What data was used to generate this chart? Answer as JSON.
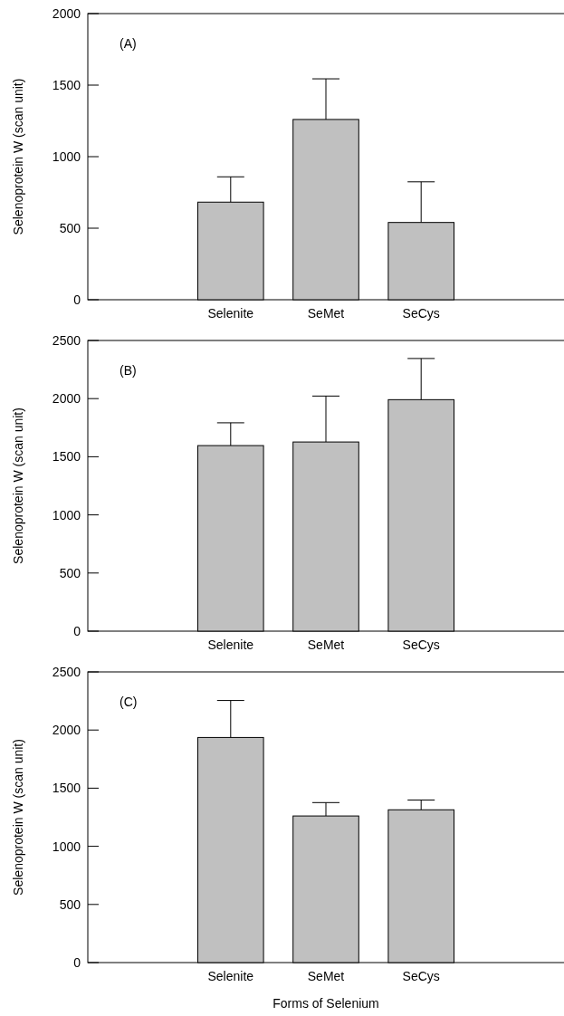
{
  "chart_data": [
    {
      "type": "bar",
      "categories": [
        null,
        "Selenite",
        "SeMet",
        "SeCys",
        null
      ],
      "values": [
        null,
        682,
        1260,
        540,
        null
      ],
      "errors": [
        null,
        177,
        284,
        284,
        null
      ],
      "color": "#c0c0c0",
      "ylabel": "Selenoprotein W (scan unit)",
      "ylim": [
        0,
        2000
      ],
      "yticks": [
        0,
        500,
        1000,
        1500,
        2000
      ],
      "annotations": [
        "(A)"
      ],
      "grid": false
    },
    {
      "type": "bar",
      "categories": [
        null,
        "Selenite",
        "SeMet",
        "SeCys",
        null
      ],
      "values": [
        null,
        1596,
        1627,
        1991,
        null
      ],
      "errors": [
        null,
        196,
        395,
        354,
        null
      ],
      "color": "#c0c0c0",
      "ylabel": "Selenoprotein W (scan unit)",
      "ylim": [
        0,
        2500
      ],
      "yticks": [
        0,
        500,
        1000,
        1500,
        2000,
        2500
      ],
      "annotations": [
        "(B)"
      ],
      "grid": false
    },
    {
      "type": "bar",
      "categories": [
        null,
        "Selenite",
        "SeMet",
        "SeCys",
        null
      ],
      "values": [
        null,
        1936,
        1261,
        1314,
        null
      ],
      "errors": [
        null,
        318,
        115,
        84,
        null
      ],
      "color": "#c0c0c0",
      "xlabel": "Forms of Selenium",
      "ylabel": "Selenoprotein W (scan unit)",
      "ylim": [
        0,
        2500
      ],
      "yticks": [
        0,
        500,
        1000,
        1500,
        2000,
        2500
      ],
      "annotations": [
        "(C)"
      ],
      "grid": false
    }
  ]
}
